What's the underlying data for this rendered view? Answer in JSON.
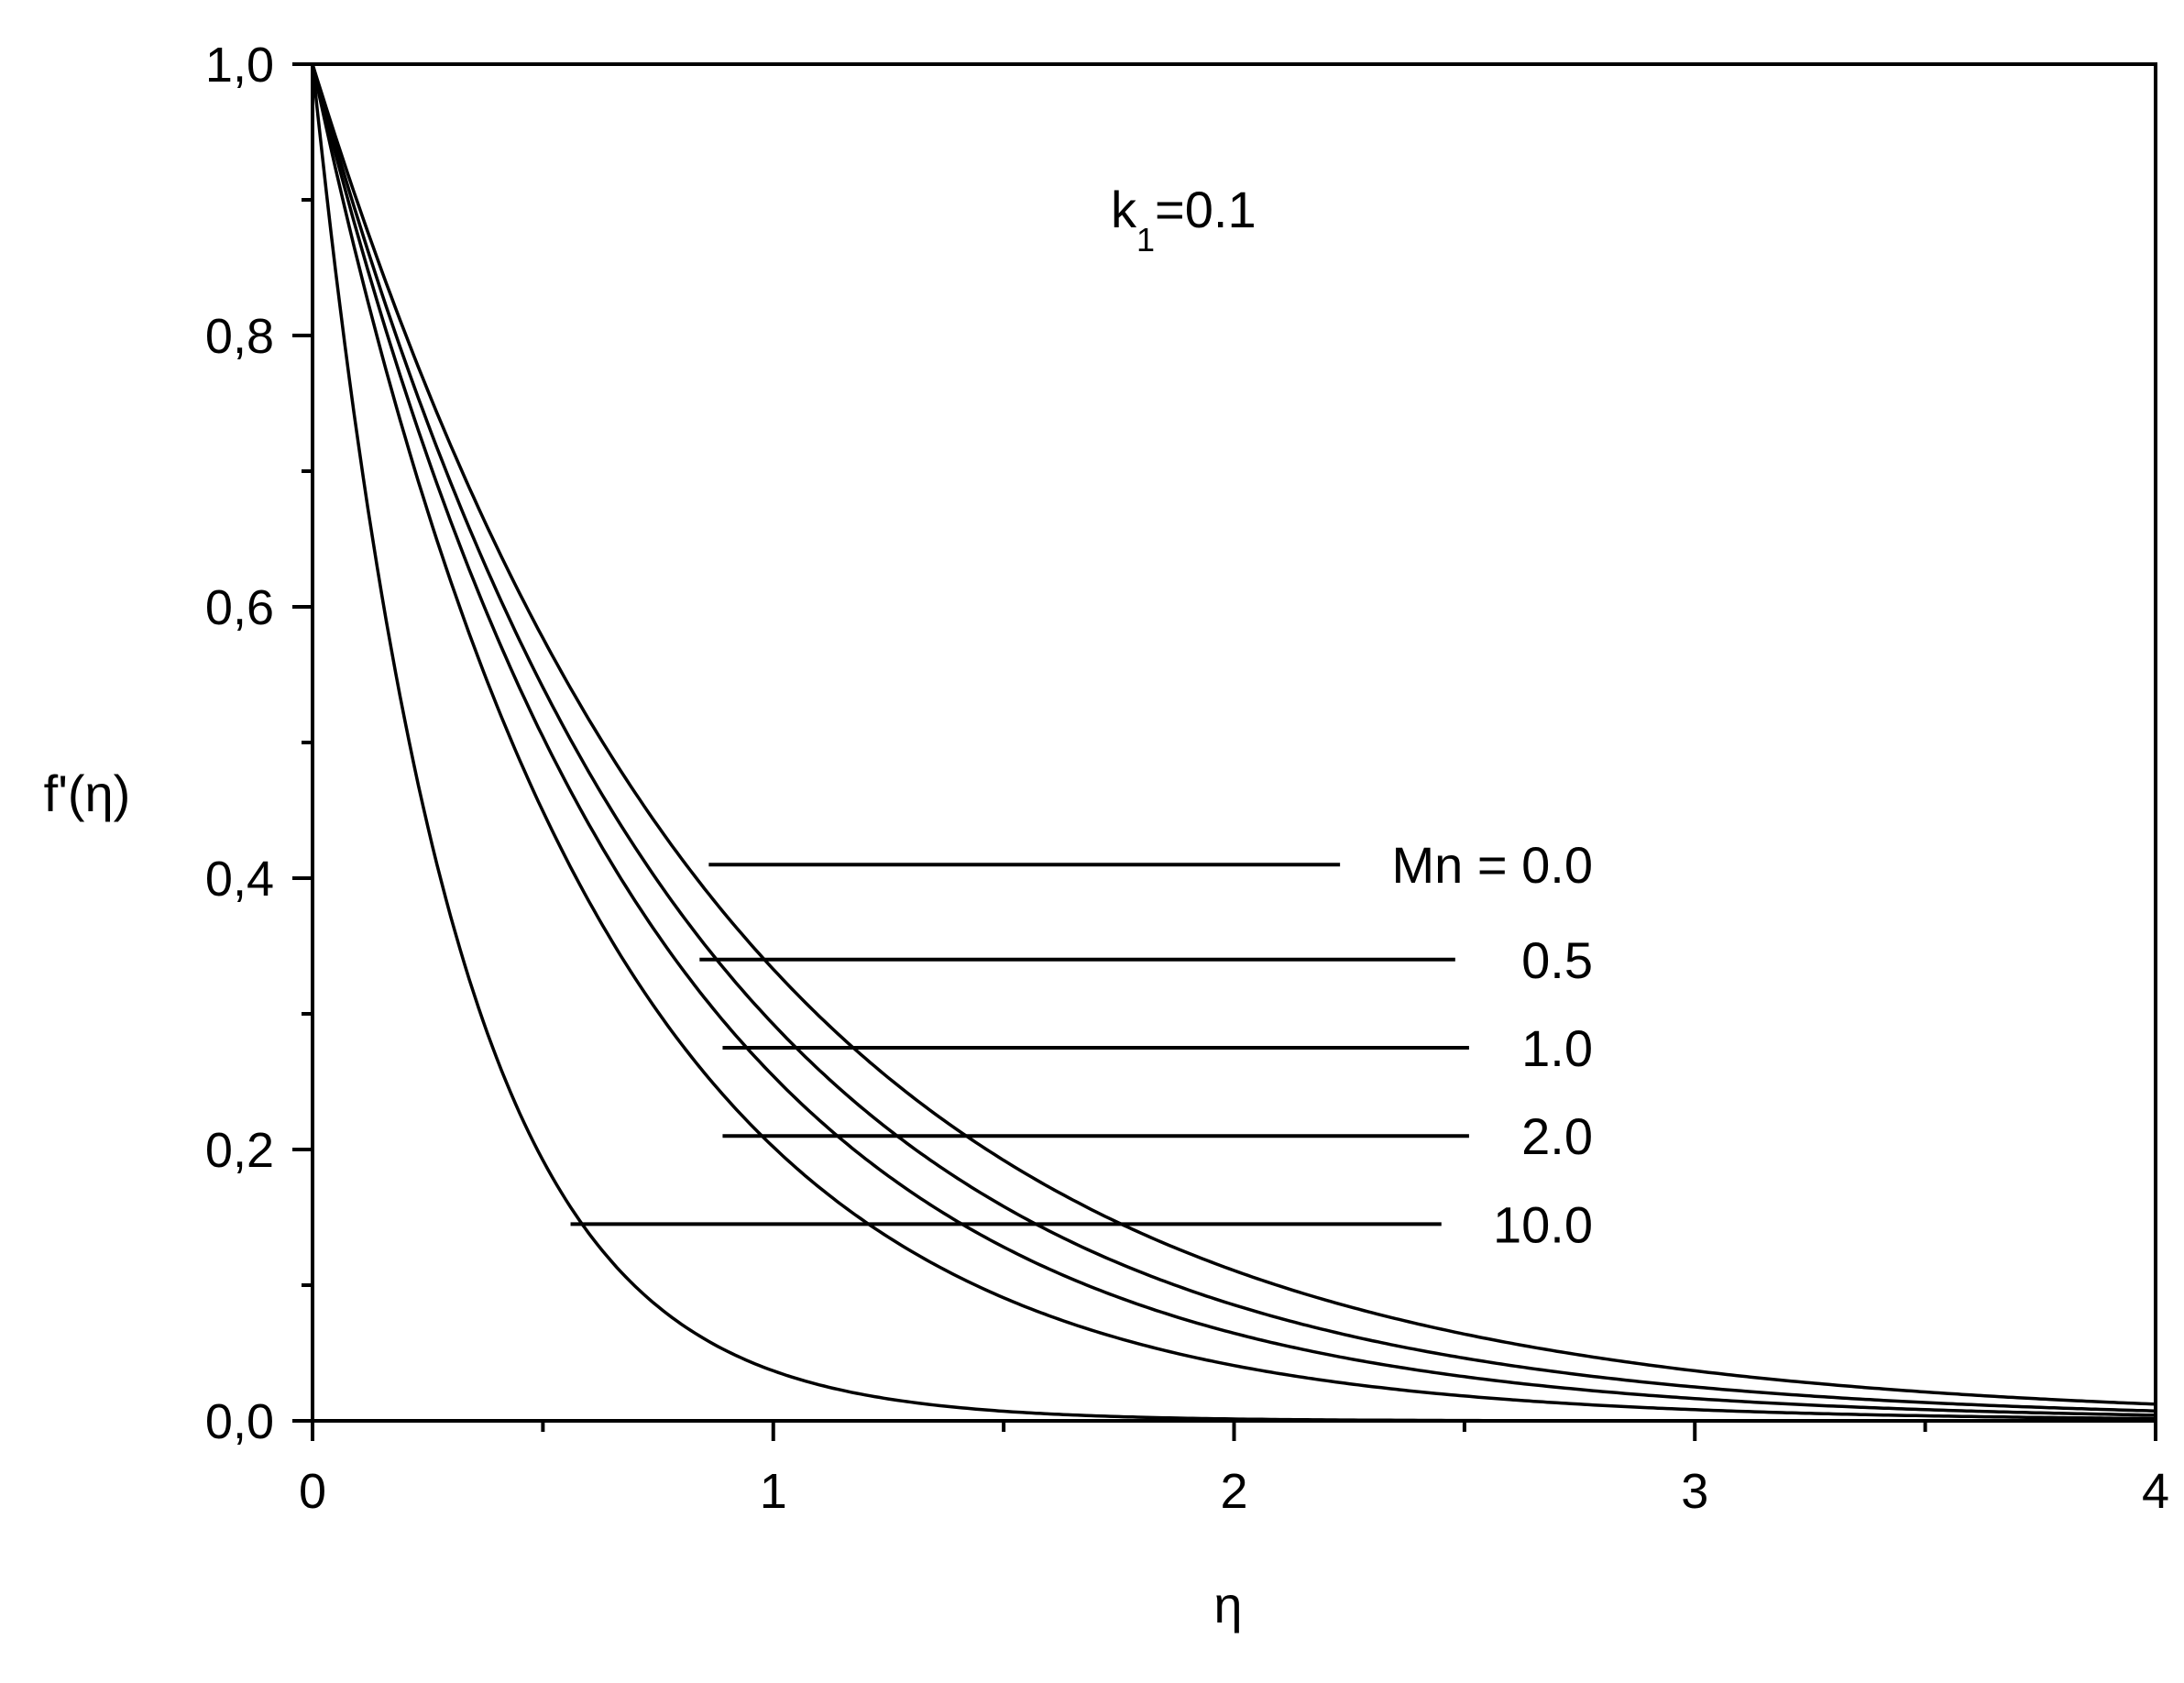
{
  "chart_data": {
    "type": "line",
    "title": "",
    "annotation": {
      "main": "k",
      "subscript": "1",
      "rest": "=0.1"
    },
    "xlabel": "η",
    "ylabel": "f'(η)",
    "xlim": [
      0,
      4
    ],
    "ylim": [
      0,
      1
    ],
    "x_ticks": [
      0,
      1,
      2,
      3,
      4
    ],
    "x_tick_labels": [
      "0",
      "1",
      "2",
      "3",
      "4"
    ],
    "y_ticks": [
      0,
      0.2,
      0.4,
      0.6,
      0.8,
      1.0
    ],
    "y_tick_labels": [
      "0,0",
      "0,2",
      "0,4",
      "0,6",
      "0,8",
      "1,0"
    ],
    "grid": false,
    "series": [
      {
        "name": "Mn = 0.0",
        "label_text": "Mn = 0.0",
        "decay_rate": 1.1,
        "leader_start": [
          0.86,
          0.41
        ],
        "leader_end_x": 2.23,
        "label_y": 0.41
      },
      {
        "name": "0.5",
        "label_text": "0.5",
        "decay_rate": 1.23,
        "leader_start": [
          0.84,
          0.34
        ],
        "leader_end_x": 2.48,
        "label_y": 0.34
      },
      {
        "name": "1.0",
        "label_text": "1.0",
        "decay_rate": 1.37,
        "leader_start": [
          0.89,
          0.275
        ],
        "leader_end_x": 2.51,
        "label_y": 0.275
      },
      {
        "name": "2.0",
        "label_text": "2.0",
        "decay_rate": 1.6,
        "leader_start": [
          0.89,
          0.21
        ],
        "leader_end_x": 2.51,
        "label_y": 0.21
      },
      {
        "name": "10.0",
        "label_text": "10.0",
        "decay_rate": 3.3,
        "leader_start": [
          0.56,
          0.145
        ],
        "leader_end_x": 2.45,
        "label_y": 0.145
      }
    ]
  }
}
